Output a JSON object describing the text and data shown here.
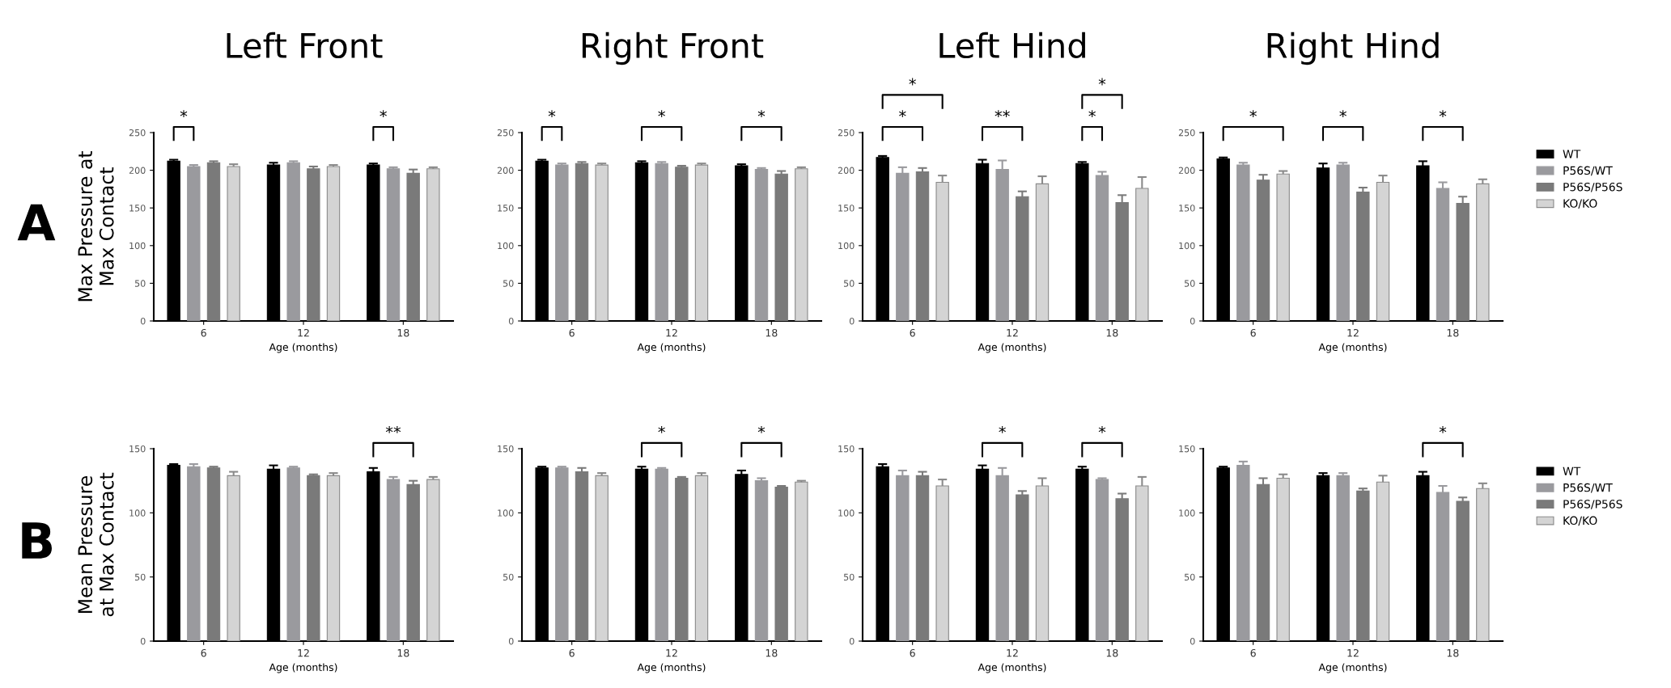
{
  "chart_data": [
    {
      "type": "bar",
      "title": "Left Front",
      "ylabel": "Max Pressure at\nMax Contact",
      "xlabel": "Age (months)",
      "categories": [
        "6",
        "12",
        "18"
      ],
      "ylim": [
        0,
        250
      ],
      "yticks": [
        0,
        50,
        100,
        150,
        200,
        250
      ],
      "grid": false,
      "legend": false,
      "annotations": [
        "A",
        "*",
        "*"
      ],
      "series": [
        {
          "color": "#000000",
          "values": [
            212,
            207,
            207
          ],
          "errors": [
            2,
            3,
            2
          ]
        },
        {
          "color": "#9a9a9e",
          "values": [
            205,
            210,
            202
          ],
          "errors": [
            2,
            2,
            2
          ]
        },
        {
          "color": "#7a7a7a",
          "values": [
            210,
            202,
            196
          ],
          "errors": [
            2,
            3,
            5
          ]
        },
        {
          "color": "#d4d4d4",
          "values": [
            205,
            205,
            202
          ],
          "errors": [
            3,
            2,
            2
          ]
        }
      ]
    },
    {
      "type": "bar",
      "title": "Right Front",
      "xlabel": "Age (months)",
      "categories": [
        "6",
        "12",
        "18"
      ],
      "ylim": [
        0,
        250
      ],
      "yticks": [
        0,
        50,
        100,
        150,
        200,
        250
      ],
      "grid": false,
      "legend": false,
      "annotations": [
        "*",
        "*",
        "*"
      ],
      "series": [
        {
          "color": "#000000",
          "values": [
            212,
            210,
            206
          ],
          "errors": [
            2,
            2,
            2
          ]
        },
        {
          "color": "#9a9a9e",
          "values": [
            207,
            209,
            201
          ],
          "errors": [
            2,
            2,
            2
          ]
        },
        {
          "color": "#7a7a7a",
          "values": [
            209,
            204,
            195
          ],
          "errors": [
            2,
            2,
            4
          ]
        },
        {
          "color": "#d4d4d4",
          "values": [
            207,
            207,
            202
          ],
          "errors": [
            2,
            2,
            2
          ]
        }
      ]
    },
    {
      "type": "bar",
      "title": "Left Hind",
      "xlabel": "Age (months)",
      "categories": [
        "6",
        "12",
        "18"
      ],
      "ylim": [
        0,
        250
      ],
      "yticks": [
        0,
        50,
        100,
        150,
        200,
        250
      ],
      "grid": false,
      "legend": false,
      "annotations": [
        "*",
        "*",
        "**",
        "*",
        "*"
      ],
      "series": [
        {
          "color": "#000000",
          "values": [
            217,
            209,
            209
          ],
          "errors": [
            2,
            5,
            2
          ]
        },
        {
          "color": "#9a9a9e",
          "values": [
            196,
            201,
            193
          ],
          "errors": [
            8,
            12,
            5
          ]
        },
        {
          "color": "#7a7a7a",
          "values": [
            198,
            165,
            157
          ],
          "errors": [
            5,
            7,
            10
          ]
        },
        {
          "color": "#d4d4d4",
          "values": [
            184,
            182,
            176
          ],
          "errors": [
            9,
            10,
            15
          ]
        }
      ]
    },
    {
      "type": "bar",
      "title": "Right Hind",
      "xlabel": "Age (months)",
      "categories": [
        "6",
        "12",
        "18"
      ],
      "ylim": [
        0,
        250
      ],
      "yticks": [
        0,
        50,
        100,
        150,
        200,
        250
      ],
      "grid": false,
      "legend": "right",
      "annotations": [
        "*",
        "*",
        "*"
      ],
      "series": [
        {
          "name": "WT",
          "color": "#000000",
          "values": [
            215,
            203,
            206
          ],
          "errors": [
            2,
            6,
            6
          ]
        },
        {
          "name": "P56S/WT",
          "color": "#9a9a9e",
          "values": [
            207,
            207,
            176
          ],
          "errors": [
            3,
            3,
            8
          ]
        },
        {
          "name": "P56S/P56S",
          "color": "#7a7a7a",
          "values": [
            187,
            171,
            156
          ],
          "errors": [
            7,
            6,
            9
          ]
        },
        {
          "name": "KO/KO",
          "color": "#d4d4d4",
          "values": [
            195,
            184,
            182
          ],
          "errors": [
            4,
            9,
            6
          ]
        }
      ]
    },
    {
      "type": "bar",
      "ylabel": "Mean Pressure\nat Max Contact",
      "xlabel": "Age (months)",
      "categories": [
        "6",
        "12",
        "18"
      ],
      "ylim": [
        0,
        150
      ],
      "yticks": [
        0,
        50,
        100,
        150
      ],
      "grid": false,
      "legend": false,
      "annotations": [
        "B",
        "**"
      ],
      "series": [
        {
          "color": "#000000",
          "values": [
            137,
            134,
            132
          ],
          "errors": [
            1,
            3,
            3
          ]
        },
        {
          "color": "#9a9a9e",
          "values": [
            136,
            135,
            126
          ],
          "errors": [
            2,
            1,
            2
          ]
        },
        {
          "color": "#7a7a7a",
          "values": [
            135,
            129,
            122
          ],
          "errors": [
            1,
            1,
            3
          ]
        },
        {
          "color": "#d4d4d4",
          "values": [
            129,
            129,
            126
          ],
          "errors": [
            3,
            2,
            2
          ]
        }
      ]
    },
    {
      "type": "bar",
      "xlabel": "Age (months)",
      "categories": [
        "6",
        "12",
        "18"
      ],
      "ylim": [
        0,
        150
      ],
      "yticks": [
        0,
        50,
        100,
        150
      ],
      "grid": false,
      "legend": false,
      "annotations": [
        "*",
        "*"
      ],
      "series": [
        {
          "color": "#000000",
          "values": [
            135,
            134,
            130
          ],
          "errors": [
            1,
            2,
            3
          ]
        },
        {
          "color": "#9a9a9e",
          "values": [
            135,
            134,
            125
          ],
          "errors": [
            1,
            1,
            2
          ]
        },
        {
          "color": "#7a7a7a",
          "values": [
            132,
            127,
            120
          ],
          "errors": [
            3,
            1,
            1
          ]
        },
        {
          "color": "#d4d4d4",
          "values": [
            129,
            129,
            124
          ],
          "errors": [
            2,
            2,
            1
          ]
        }
      ]
    },
    {
      "type": "bar",
      "xlabel": "Age (months)",
      "categories": [
        "6",
        "12",
        "18"
      ],
      "ylim": [
        0,
        150
      ],
      "yticks": [
        0,
        50,
        100,
        150
      ],
      "grid": false,
      "legend": false,
      "annotations": [
        "*",
        "*"
      ],
      "series": [
        {
          "color": "#000000",
          "values": [
            136,
            134,
            134
          ],
          "errors": [
            2,
            3,
            2
          ]
        },
        {
          "color": "#9a9a9e",
          "values": [
            129,
            129,
            126
          ],
          "errors": [
            4,
            6,
            1
          ]
        },
        {
          "color": "#7a7a7a",
          "values": [
            129,
            114,
            111
          ],
          "errors": [
            3,
            3,
            4
          ]
        },
        {
          "color": "#d4d4d4",
          "values": [
            121,
            121,
            121
          ],
          "errors": [
            5,
            6,
            7
          ]
        }
      ]
    },
    {
      "type": "bar",
      "xlabel": "Age (months)",
      "categories": [
        "6",
        "12",
        "18"
      ],
      "ylim": [
        0,
        150
      ],
      "yticks": [
        0,
        50,
        100,
        150
      ],
      "grid": false,
      "legend": "right",
      "annotations": [
        "*"
      ],
      "series": [
        {
          "name": "WT",
          "color": "#000000",
          "values": [
            135,
            129,
            129
          ],
          "errors": [
            1,
            2,
            3
          ]
        },
        {
          "name": "P56S/WT",
          "color": "#9a9a9e",
          "values": [
            137,
            129,
            116
          ],
          "errors": [
            3,
            2,
            5
          ]
        },
        {
          "name": "P56S/P56S",
          "color": "#7a7a7a",
          "values": [
            122,
            117,
            109
          ],
          "errors": [
            5,
            2,
            3
          ]
        },
        {
          "name": "KO/KO",
          "color": "#d4d4d4",
          "values": [
            127,
            124,
            119
          ],
          "errors": [
            3,
            5,
            4
          ]
        }
      ]
    }
  ]
}
